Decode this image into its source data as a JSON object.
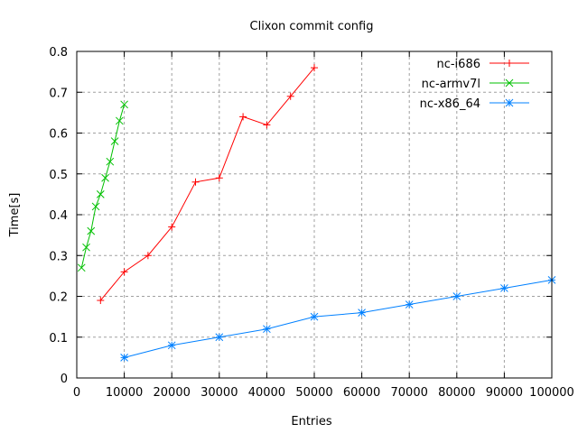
{
  "chart_data": {
    "type": "line",
    "title": "Clixon commit config",
    "xlabel": "Entries",
    "ylabel": "Time[s]",
    "xlim": [
      0,
      100000
    ],
    "ylim": [
      0,
      0.8
    ],
    "xticks": [
      "0",
      "10000",
      "20000",
      "30000",
      "40000",
      "50000",
      "60000",
      "70000",
      "80000",
      "90000",
      "100000"
    ],
    "yticks": [
      "0",
      "0.1",
      "0.2",
      "0.3",
      "0.4",
      "0.5",
      "0.6",
      "0.7",
      "0.8"
    ],
    "grid": true,
    "legend_position": "top-right",
    "series": [
      {
        "name": "nc-i686",
        "color": "#ff0000",
        "marker": "plus",
        "x": [
          5000,
          10000,
          15000,
          20000,
          25000,
          30000,
          35000,
          40000,
          45000,
          50000
        ],
        "y": [
          0.19,
          0.26,
          0.3,
          0.37,
          0.48,
          0.49,
          0.64,
          0.62,
          0.69,
          0.76
        ]
      },
      {
        "name": "nc-armv7l",
        "color": "#00c000",
        "marker": "cross",
        "x": [
          1000,
          2000,
          3000,
          4000,
          5000,
          6000,
          7000,
          8000,
          9000,
          10000
        ],
        "y": [
          0.27,
          0.32,
          0.36,
          0.42,
          0.45,
          0.49,
          0.53,
          0.58,
          0.63,
          0.67
        ]
      },
      {
        "name": "nc-x86_64",
        "color": "#0080ff",
        "marker": "star",
        "x": [
          10000,
          20000,
          30000,
          40000,
          50000,
          60000,
          70000,
          80000,
          90000,
          100000
        ],
        "y": [
          0.05,
          0.08,
          0.1,
          0.12,
          0.15,
          0.16,
          0.18,
          0.2,
          0.22,
          0.24
        ]
      }
    ]
  }
}
